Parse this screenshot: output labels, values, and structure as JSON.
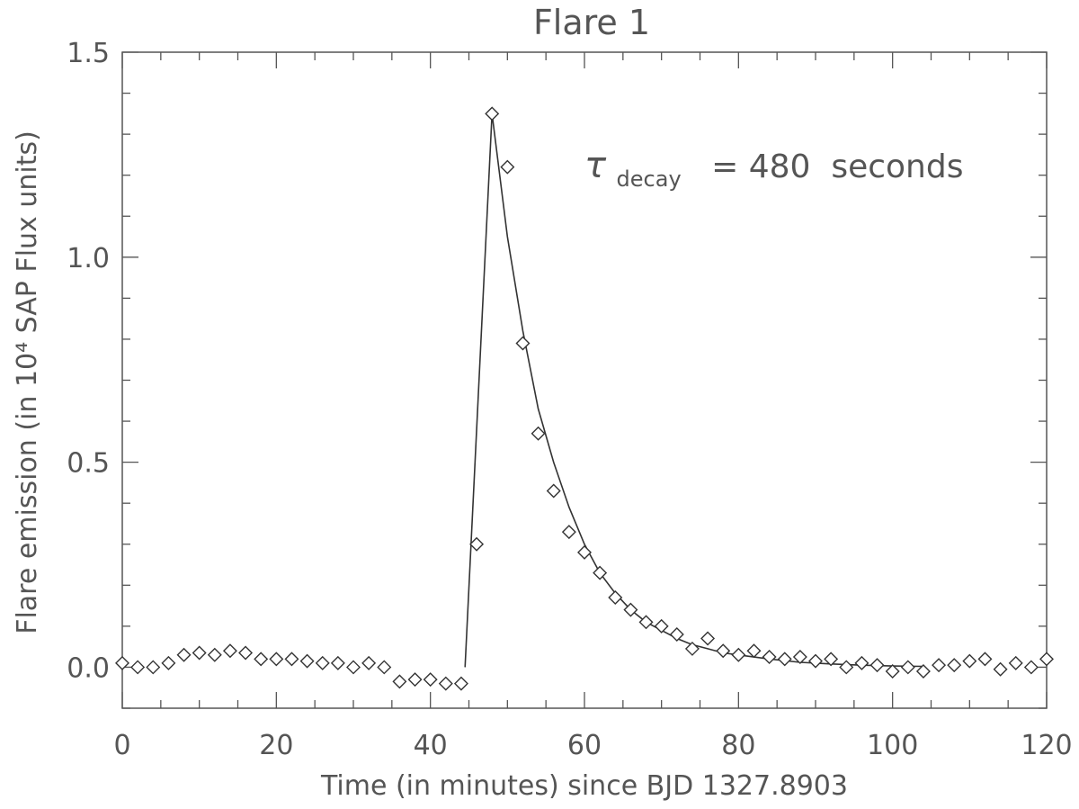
{
  "chart_data": {
    "type": "scatter",
    "title": "Flare 1",
    "xlabel": "Time (in minutes) since BJD 1327.8903",
    "ylabel": "Flare emission (in 10⁴ SAP Flux units)",
    "xlim": [
      0,
      120
    ],
    "ylim": [
      -0.1,
      1.5
    ],
    "xticks": [
      0,
      20,
      40,
      60,
      80,
      100,
      120
    ],
    "xtick_labels": [
      "0",
      "20",
      "40",
      "60",
      "80",
      "100",
      "120"
    ],
    "yticks": [
      0.0,
      0.5,
      1.0,
      1.5
    ],
    "ytick_labels": [
      "0.0",
      "0.5",
      "1.0",
      "1.5"
    ],
    "grid": false,
    "annotation": {
      "symbol": "τ",
      "subscript": "decay",
      "text": "= 480  seconds"
    },
    "series": [
      {
        "marker": "diamond",
        "x": [
          0,
          2,
          4,
          6,
          8,
          10,
          12,
          14,
          16,
          18,
          20,
          22,
          24,
          26,
          28,
          30,
          32,
          34,
          36,
          38,
          40,
          42,
          44,
          46,
          48,
          50,
          52,
          54,
          56,
          58,
          60,
          62,
          64,
          66,
          68,
          70,
          72,
          74,
          76,
          78,
          80,
          82,
          84,
          86,
          88,
          90,
          92,
          94,
          96,
          98,
          100,
          102,
          104,
          106,
          108,
          110,
          112,
          114,
          116,
          118,
          120
        ],
        "y": [
          0.01,
          0.0,
          0.0,
          0.01,
          0.03,
          0.035,
          0.03,
          0.04,
          0.035,
          0.02,
          0.02,
          0.02,
          0.015,
          0.01,
          0.01,
          0.0,
          0.01,
          0.0,
          -0.035,
          -0.03,
          -0.03,
          -0.04,
          -0.04,
          0.3,
          1.35,
          1.22,
          0.79,
          0.57,
          0.43,
          0.33,
          0.28,
          0.23,
          0.17,
          0.14,
          0.11,
          0.1,
          0.08,
          0.045,
          0.07,
          0.04,
          0.03,
          0.04,
          0.025,
          0.02,
          0.025,
          0.015,
          0.02,
          0.0,
          0.01,
          0.005,
          -0.01,
          0.0,
          -0.01,
          0.005,
          0.005,
          0.015,
          0.02,
          -0.005,
          0.01,
          0.0,
          0.02
        ]
      },
      {
        "marker": "line",
        "x": [
          44.5,
          48,
          50,
          52,
          54,
          56,
          58,
          60,
          62,
          64,
          66,
          68,
          70,
          72,
          74,
          76,
          78,
          80,
          84,
          88,
          92,
          96,
          100,
          104
        ],
        "y": [
          0.0,
          1.35,
          1.05,
          0.82,
          0.63,
          0.5,
          0.39,
          0.3,
          0.23,
          0.18,
          0.14,
          0.11,
          0.09,
          0.07,
          0.055,
          0.045,
          0.035,
          0.03,
          0.02,
          0.012,
          0.008,
          0.005,
          0.003,
          0.002
        ]
      }
    ]
  }
}
